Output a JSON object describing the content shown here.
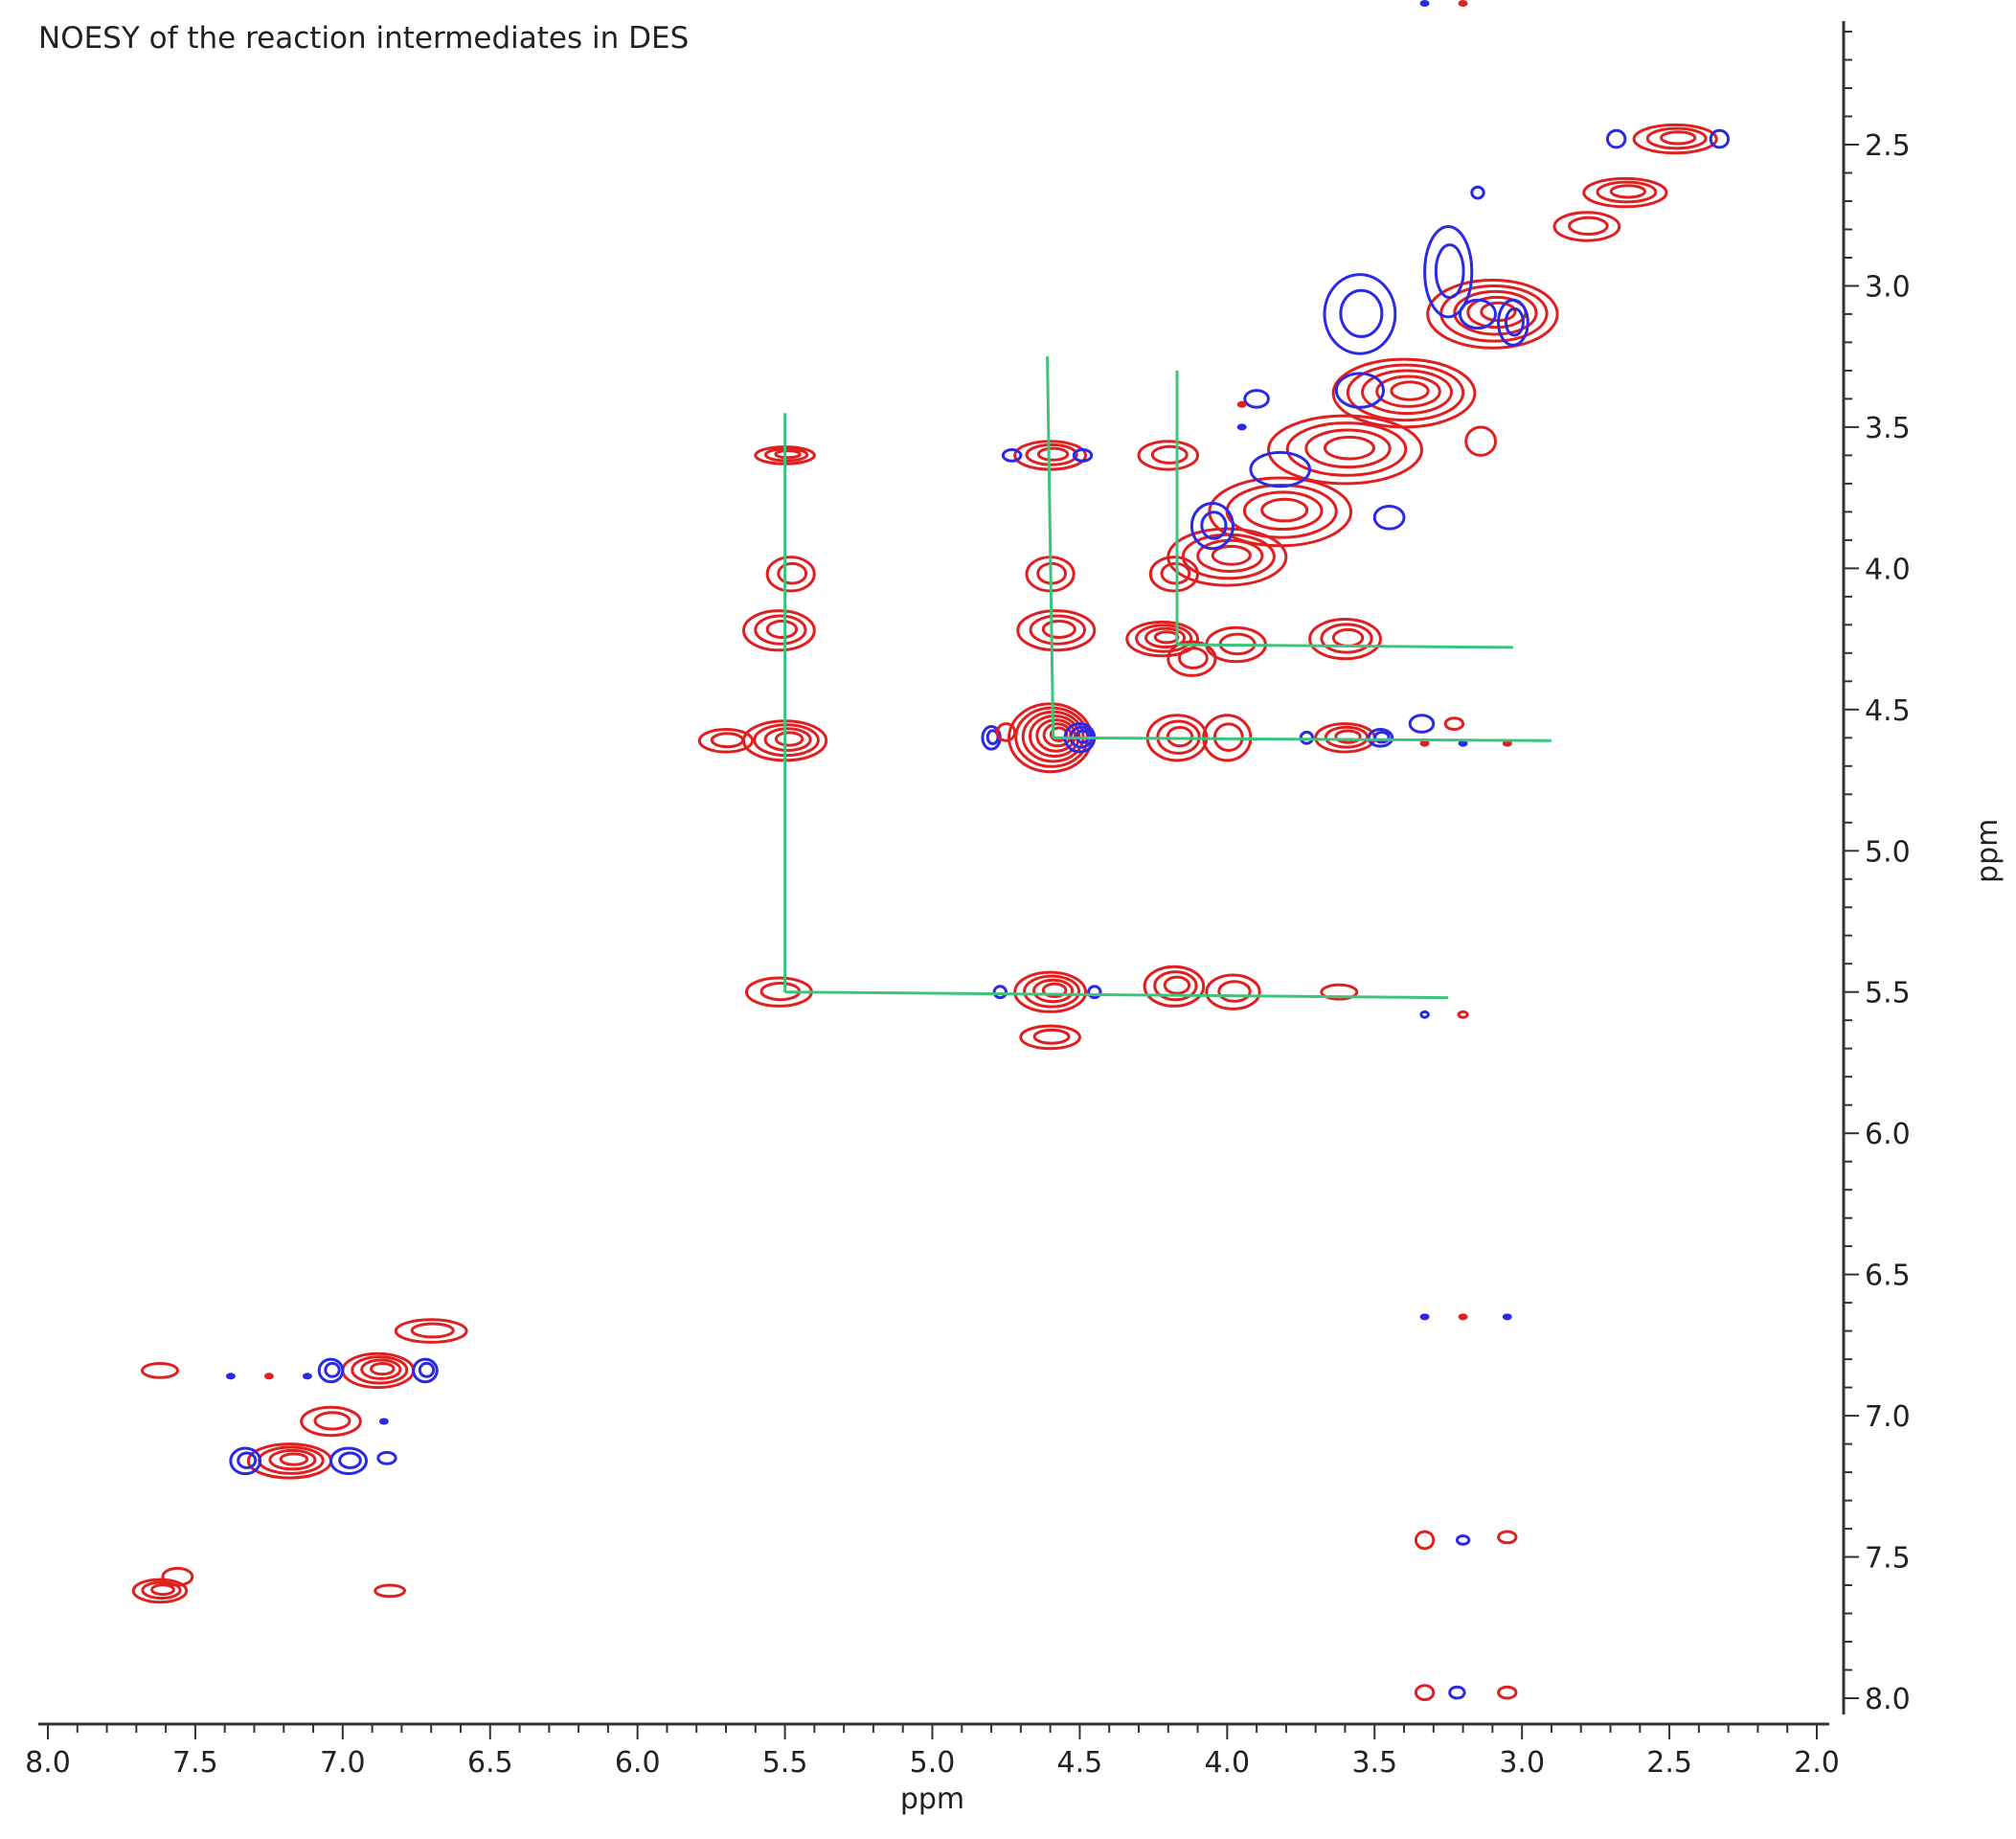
{
  "chart_data": {
    "type": "heatmap",
    "title": "NOESY of the reaction intermediates in DES",
    "xlabel": "ppm",
    "ylabel": "ppm",
    "xlim": [
      8.0,
      2.0
    ],
    "ylim": [
      2.0,
      8.1
    ],
    "x_ticks": [
      "8.0",
      "7.5",
      "7.0",
      "6.5",
      "6.0",
      "5.5",
      "5.0",
      "4.5",
      "4.0",
      "3.5",
      "3.0",
      "2.5",
      "2.0"
    ],
    "y_ticks": [
      "2.5",
      "3.0",
      "3.5",
      "4.0",
      "4.5",
      "5.0",
      "5.5",
      "6.0",
      "6.5",
      "7.0",
      "7.5",
      "8.0"
    ],
    "colors": {
      "positive": "#e02020",
      "negative": "#2a2ae6",
      "guide": "#3cc47c",
      "axis": "#333333"
    },
    "peaks": [
      {
        "x": 2.48,
        "y": 2.48,
        "sign": "pos",
        "w": 0.14,
        "h": 0.05,
        "n": 3
      },
      {
        "x": 2.68,
        "y": 2.48,
        "sign": "neg",
        "w": 0.03,
        "h": 0.03,
        "n": 1
      },
      {
        "x": 2.33,
        "y": 2.48,
        "sign": "neg",
        "w": 0.03,
        "h": 0.03,
        "n": 1
      },
      {
        "x": 2.65,
        "y": 2.67,
        "sign": "pos",
        "w": 0.14,
        "h": 0.05,
        "n": 3
      },
      {
        "x": 2.78,
        "y": 2.79,
        "sign": "pos",
        "w": 0.11,
        "h": 0.05,
        "n": 2
      },
      {
        "x": 3.1,
        "y": 3.1,
        "sign": "pos",
        "w": 0.22,
        "h": 0.12,
        "n": 5
      },
      {
        "x": 3.4,
        "y": 3.38,
        "sign": "pos",
        "w": 0.24,
        "h": 0.12,
        "n": 5
      },
      {
        "x": 3.6,
        "y": 3.58,
        "sign": "pos",
        "w": 0.26,
        "h": 0.12,
        "n": 4
      },
      {
        "x": 3.82,
        "y": 3.8,
        "sign": "pos",
        "w": 0.24,
        "h": 0.12,
        "n": 4
      },
      {
        "x": 4.0,
        "y": 3.96,
        "sign": "pos",
        "w": 0.2,
        "h": 0.1,
        "n": 4
      },
      {
        "x": 3.25,
        "y": 2.95,
        "sign": "neg",
        "w": 0.08,
        "h": 0.16,
        "n": 2
      },
      {
        "x": 3.55,
        "y": 3.1,
        "sign": "neg",
        "w": 0.12,
        "h": 0.14,
        "n": 2
      },
      {
        "x": 3.15,
        "y": 3.1,
        "sign": "neg",
        "w": 0.06,
        "h": 0.05,
        "n": 1
      },
      {
        "x": 3.03,
        "y": 3.13,
        "sign": "neg",
        "w": 0.05,
        "h": 0.08,
        "n": 2
      },
      {
        "x": 3.55,
        "y": 3.37,
        "sign": "neg",
        "w": 0.08,
        "h": 0.06,
        "n": 1
      },
      {
        "x": 3.82,
        "y": 3.65,
        "sign": "neg",
        "w": 0.1,
        "h": 0.06,
        "n": 1
      },
      {
        "x": 4.05,
        "y": 3.85,
        "sign": "neg",
        "w": 0.07,
        "h": 0.08,
        "n": 2
      },
      {
        "x": 3.45,
        "y": 3.82,
        "sign": "neg",
        "w": 0.05,
        "h": 0.04,
        "n": 1
      },
      {
        "x": 3.9,
        "y": 3.4,
        "sign": "neg",
        "w": 0.04,
        "h": 0.03,
        "n": 1
      },
      {
        "x": 3.15,
        "y": 2.67,
        "sign": "neg",
        "w": 0.02,
        "h": 0.02,
        "n": 1
      },
      {
        "x": 3.14,
        "y": 3.55,
        "sign": "pos",
        "w": 0.05,
        "h": 0.05,
        "n": 1
      },
      {
        "x": 5.5,
        "y": 3.6,
        "sign": "pos",
        "w": 0.1,
        "h": 0.03,
        "n": 3
      },
      {
        "x": 5.48,
        "y": 4.02,
        "sign": "pos",
        "w": 0.08,
        "h": 0.06,
        "n": 2
      },
      {
        "x": 5.52,
        "y": 4.22,
        "sign": "pos",
        "w": 0.12,
        "h": 0.07,
        "n": 3
      },
      {
        "x": 5.5,
        "y": 4.61,
        "sign": "pos",
        "w": 0.14,
        "h": 0.07,
        "n": 4
      },
      {
        "x": 5.7,
        "y": 4.61,
        "sign": "pos",
        "w": 0.09,
        "h": 0.04,
        "n": 2
      },
      {
        "x": 5.52,
        "y": 5.5,
        "sign": "pos",
        "w": 0.11,
        "h": 0.05,
        "n": 2
      },
      {
        "x": 4.6,
        "y": 3.6,
        "sign": "pos",
        "w": 0.12,
        "h": 0.05,
        "n": 3
      },
      {
        "x": 4.73,
        "y": 3.6,
        "sign": "neg",
        "w": 0.03,
        "h": 0.02,
        "n": 1
      },
      {
        "x": 4.49,
        "y": 3.6,
        "sign": "neg",
        "w": 0.03,
        "h": 0.02,
        "n": 1
      },
      {
        "x": 4.6,
        "y": 4.02,
        "sign": "pos",
        "w": 0.08,
        "h": 0.06,
        "n": 2
      },
      {
        "x": 4.58,
        "y": 4.22,
        "sign": "pos",
        "w": 0.13,
        "h": 0.07,
        "n": 3
      },
      {
        "x": 4.6,
        "y": 4.6,
        "sign": "pos",
        "w": 0.14,
        "h": 0.12,
        "n": 7
      },
      {
        "x": 4.8,
        "y": 4.6,
        "sign": "neg",
        "w": 0.03,
        "h": 0.04,
        "n": 2
      },
      {
        "x": 4.5,
        "y": 4.6,
        "sign": "neg",
        "w": 0.05,
        "h": 0.05,
        "n": 3
      },
      {
        "x": 4.75,
        "y": 4.58,
        "sign": "pos",
        "w": 0.03,
        "h": 0.03,
        "n": 1
      },
      {
        "x": 4.6,
        "y": 5.5,
        "sign": "pos",
        "w": 0.12,
        "h": 0.07,
        "n": 4
      },
      {
        "x": 4.6,
        "y": 5.66,
        "sign": "pos",
        "w": 0.1,
        "h": 0.04,
        "n": 2
      },
      {
        "x": 4.77,
        "y": 5.5,
        "sign": "neg",
        "w": 0.02,
        "h": 0.02,
        "n": 1
      },
      {
        "x": 4.45,
        "y": 5.5,
        "sign": "neg",
        "w": 0.02,
        "h": 0.02,
        "n": 1
      },
      {
        "x": 4.2,
        "y": 3.6,
        "sign": "pos",
        "w": 0.1,
        "h": 0.05,
        "n": 2
      },
      {
        "x": 4.18,
        "y": 4.02,
        "sign": "pos",
        "w": 0.08,
        "h": 0.06,
        "n": 2
      },
      {
        "x": 4.22,
        "y": 4.25,
        "sign": "pos",
        "w": 0.12,
        "h": 0.06,
        "n": 4
      },
      {
        "x": 4.12,
        "y": 4.32,
        "sign": "pos",
        "w": 0.08,
        "h": 0.06,
        "n": 2
      },
      {
        "x": 3.97,
        "y": 4.27,
        "sign": "pos",
        "w": 0.1,
        "h": 0.06,
        "n": 2
      },
      {
        "x": 3.6,
        "y": 4.25,
        "sign": "pos",
        "w": 0.12,
        "h": 0.07,
        "n": 3
      },
      {
        "x": 4.17,
        "y": 4.6,
        "sign": "pos",
        "w": 0.1,
        "h": 0.08,
        "n": 3
      },
      {
        "x": 4.0,
        "y": 4.6,
        "sign": "pos",
        "w": 0.08,
        "h": 0.08,
        "n": 2
      },
      {
        "x": 3.6,
        "y": 4.6,
        "sign": "pos",
        "w": 0.1,
        "h": 0.05,
        "n": 3
      },
      {
        "x": 3.48,
        "y": 4.6,
        "sign": "neg",
        "w": 0.04,
        "h": 0.03,
        "n": 2
      },
      {
        "x": 3.73,
        "y": 4.6,
        "sign": "neg",
        "w": 0.02,
        "h": 0.02,
        "n": 1
      },
      {
        "x": 3.34,
        "y": 4.55,
        "sign": "neg",
        "w": 0.04,
        "h": 0.03,
        "n": 1
      },
      {
        "x": 3.23,
        "y": 4.55,
        "sign": "pos",
        "w": 0.03,
        "h": 0.02,
        "n": 1
      },
      {
        "x": 4.18,
        "y": 5.48,
        "sign": "pos",
        "w": 0.1,
        "h": 0.07,
        "n": 3
      },
      {
        "x": 3.98,
        "y": 5.5,
        "sign": "pos",
        "w": 0.09,
        "h": 0.06,
        "n": 2
      },
      {
        "x": 3.62,
        "y": 5.5,
        "sign": "pos",
        "w": 0.06,
        "h": 0.025,
        "n": 1
      },
      {
        "x": 3.33,
        "y": 5.58,
        "sign": "neg",
        "w": 0.012,
        "h": 0.01,
        "n": 1
      },
      {
        "x": 3.2,
        "y": 5.58,
        "sign": "pos",
        "w": 0.015,
        "h": 0.01,
        "n": 1
      },
      {
        "x": 7.62,
        "y": 6.84,
        "sign": "pos",
        "w": 0.06,
        "h": 0.025,
        "n": 1
      },
      {
        "x": 6.7,
        "y": 6.7,
        "sign": "pos",
        "w": 0.12,
        "h": 0.04,
        "n": 2
      },
      {
        "x": 6.88,
        "y": 6.84,
        "sign": "pos",
        "w": 0.12,
        "h": 0.06,
        "n": 4
      },
      {
        "x": 7.04,
        "y": 6.84,
        "sign": "neg",
        "w": 0.04,
        "h": 0.04,
        "n": 2
      },
      {
        "x": 6.72,
        "y": 6.84,
        "sign": "neg",
        "w": 0.04,
        "h": 0.04,
        "n": 2
      },
      {
        "x": 7.04,
        "y": 7.02,
        "sign": "pos",
        "w": 0.1,
        "h": 0.05,
        "n": 2
      },
      {
        "x": 7.18,
        "y": 7.16,
        "sign": "pos",
        "w": 0.14,
        "h": 0.06,
        "n": 4
      },
      {
        "x": 7.33,
        "y": 7.16,
        "sign": "neg",
        "w": 0.05,
        "h": 0.045,
        "n": 2
      },
      {
        "x": 6.98,
        "y": 7.16,
        "sign": "neg",
        "w": 0.06,
        "h": 0.045,
        "n": 2
      },
      {
        "x": 6.85,
        "y": 7.15,
        "sign": "neg",
        "w": 0.03,
        "h": 0.02,
        "n": 1
      },
      {
        "x": 7.62,
        "y": 7.62,
        "sign": "pos",
        "w": 0.09,
        "h": 0.04,
        "n": 3
      },
      {
        "x": 7.56,
        "y": 7.57,
        "sign": "pos",
        "w": 0.05,
        "h": 0.03,
        "n": 1
      },
      {
        "x": 6.84,
        "y": 7.62,
        "sign": "pos",
        "w": 0.05,
        "h": 0.02,
        "n": 1
      },
      {
        "x": 3.33,
        "y": 7.44,
        "sign": "pos",
        "w": 0.03,
        "h": 0.03,
        "n": 1
      },
      {
        "x": 3.2,
        "y": 7.44,
        "sign": "neg",
        "w": 0.02,
        "h": 0.015,
        "n": 1
      },
      {
        "x": 3.05,
        "y": 7.43,
        "sign": "pos",
        "w": 0.03,
        "h": 0.02,
        "n": 1
      },
      {
        "x": 3.33,
        "y": 7.98,
        "sign": "pos",
        "w": 0.03,
        "h": 0.025,
        "n": 1
      },
      {
        "x": 3.22,
        "y": 7.98,
        "sign": "neg",
        "w": 0.025,
        "h": 0.02,
        "n": 1
      },
      {
        "x": 3.05,
        "y": 7.98,
        "sign": "pos",
        "w": 0.03,
        "h": 0.02,
        "n": 1
      }
    ],
    "dots": [
      {
        "x": 3.33,
        "y": 2.0,
        "sign": "neg"
      },
      {
        "x": 3.2,
        "y": 2.0,
        "sign": "pos"
      },
      {
        "x": 3.33,
        "y": 6.65,
        "sign": "neg"
      },
      {
        "x": 3.2,
        "y": 6.65,
        "sign": "pos"
      },
      {
        "x": 3.05,
        "y": 6.65,
        "sign": "neg"
      },
      {
        "x": 7.38,
        "y": 6.86,
        "sign": "neg"
      },
      {
        "x": 7.25,
        "y": 6.86,
        "sign": "pos"
      },
      {
        "x": 7.12,
        "y": 6.86,
        "sign": "neg"
      },
      {
        "x": 6.86,
        "y": 7.02,
        "sign": "neg"
      },
      {
        "x": 3.95,
        "y": 3.5,
        "sign": "neg"
      },
      {
        "x": 3.95,
        "y": 3.42,
        "sign": "pos"
      },
      {
        "x": 3.2,
        "y": 4.62,
        "sign": "neg"
      },
      {
        "x": 3.05,
        "y": 4.62,
        "sign": "pos"
      },
      {
        "x": 3.33,
        "y": 4.62,
        "sign": "pos"
      }
    ],
    "guides": [
      {
        "x1": 5.5,
        "y1": 3.45,
        "x2": 5.5,
        "y2": 5.5
      },
      {
        "x1": 5.5,
        "y1": 5.5,
        "x2": 3.25,
        "y2": 5.52
      },
      {
        "x1": 4.61,
        "y1": 3.25,
        "x2": 4.59,
        "y2": 4.6
      },
      {
        "x1": 4.59,
        "y1": 4.6,
        "x2": 2.9,
        "y2": 4.61
      },
      {
        "x1": 4.17,
        "y1": 3.3,
        "x2": 4.17,
        "y2": 4.27
      },
      {
        "x1": 4.17,
        "y1": 4.27,
        "x2": 3.03,
        "y2": 4.28
      }
    ]
  }
}
